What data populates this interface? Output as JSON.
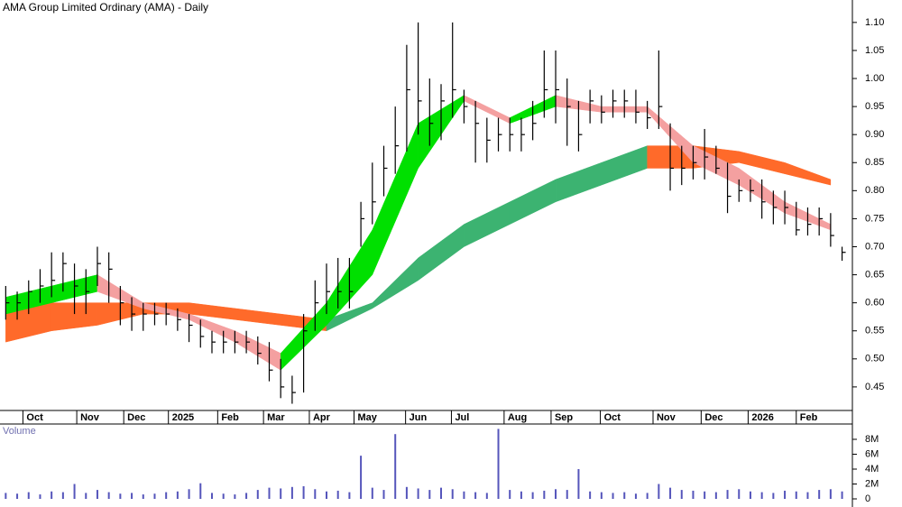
{
  "chart_data": [
    {
      "type": "ohlc",
      "title": "AMA Group Limited Ordinary (AMA) - Daily",
      "x": [
        0,
        1,
        2,
        3,
        4,
        5,
        6,
        7,
        8,
        9,
        10,
        11,
        12,
        13,
        14,
        15,
        16,
        17,
        18,
        19,
        20,
        21,
        22,
        23,
        24,
        25,
        26,
        27,
        28,
        29,
        30,
        31,
        32,
        33,
        34,
        35,
        36,
        37,
        38,
        39,
        40,
        41,
        42,
        43,
        44,
        45,
        46,
        47,
        48,
        49,
        50,
        51,
        52,
        53,
        54,
        55,
        56,
        57,
        58,
        59,
        60,
        61,
        62,
        63,
        64,
        65,
        66,
        67,
        68,
        69,
        70,
        71,
        72,
        73
      ],
      "high": [
        0.63,
        0.62,
        0.64,
        0.66,
        0.69,
        0.69,
        0.67,
        0.66,
        0.7,
        0.69,
        0.63,
        0.61,
        0.6,
        0.6,
        0.6,
        0.59,
        0.58,
        0.57,
        0.55,
        0.55,
        0.55,
        0.55,
        0.54,
        0.53,
        0.5,
        0.47,
        0.58,
        0.64,
        0.67,
        0.68,
        0.68,
        0.78,
        0.85,
        0.88,
        0.95,
        1.06,
        1.1,
        1.0,
        0.99,
        1.1,
        0.98,
        0.96,
        0.93,
        0.93,
        0.93,
        0.93,
        0.96,
        1.05,
        1.05,
        1.0,
        0.96,
        0.98,
        0.97,
        0.98,
        0.98,
        0.98,
        0.96,
        1.05,
        0.92,
        0.88,
        0.88,
        0.91,
        0.88,
        0.85,
        0.82,
        0.82,
        0.82,
        0.8,
        0.8,
        0.78,
        0.77,
        0.77,
        0.76,
        0.7
      ],
      "low": [
        0.57,
        0.57,
        0.58,
        0.6,
        0.61,
        0.62,
        0.58,
        0.58,
        0.63,
        0.6,
        0.56,
        0.55,
        0.55,
        0.56,
        0.56,
        0.55,
        0.53,
        0.52,
        0.51,
        0.51,
        0.51,
        0.51,
        0.49,
        0.46,
        0.43,
        0.42,
        0.44,
        0.55,
        0.58,
        0.59,
        0.59,
        0.7,
        0.74,
        0.79,
        0.83,
        0.87,
        0.9,
        0.88,
        0.89,
        0.93,
        0.92,
        0.85,
        0.85,
        0.87,
        0.87,
        0.87,
        0.89,
        0.93,
        0.92,
        0.88,
        0.87,
        0.92,
        0.92,
        0.93,
        0.93,
        0.92,
        0.91,
        0.91,
        0.8,
        0.81,
        0.82,
        0.82,
        0.83,
        0.76,
        0.78,
        0.78,
        0.75,
        0.74,
        0.74,
        0.72,
        0.72,
        0.72,
        0.7,
        0.675
      ],
      "close": [
        0.6,
        0.6,
        0.62,
        0.63,
        0.64,
        0.67,
        0.63,
        0.62,
        0.67,
        0.66,
        0.6,
        0.58,
        0.58,
        0.58,
        0.58,
        0.57,
        0.56,
        0.54,
        0.53,
        0.53,
        0.53,
        0.53,
        0.51,
        0.48,
        0.45,
        0.44,
        0.55,
        0.6,
        0.62,
        0.62,
        0.62,
        0.75,
        0.78,
        0.84,
        0.88,
        0.98,
        0.96,
        0.92,
        0.96,
        0.98,
        0.95,
        0.92,
        0.89,
        0.9,
        0.9,
        0.9,
        0.92,
        0.98,
        0.98,
        0.95,
        0.9,
        0.96,
        0.94,
        0.96,
        0.96,
        0.94,
        0.93,
        0.95,
        0.84,
        0.84,
        0.85,
        0.86,
        0.84,
        0.79,
        0.8,
        0.8,
        0.78,
        0.77,
        0.77,
        0.73,
        0.74,
        0.75,
        0.72,
        0.69
      ],
      "color": "#000000",
      "bands": [
        {
          "x": [
            0,
            4,
            8,
            12,
            16,
            20,
            24,
            28,
            32,
            36,
            40,
            44,
            48,
            52,
            56,
            60,
            64,
            68,
            72
          ],
          "upper": [
            0.6,
            0.6,
            0.6,
            0.6,
            0.6,
            0.59,
            0.58,
            0.57,
            0.6,
            0.68,
            0.74,
            0.78,
            0.82,
            0.85,
            0.88,
            0.88,
            0.87,
            0.85,
            0.82
          ],
          "lower": [
            0.53,
            0.55,
            0.56,
            0.58,
            0.58,
            0.57,
            0.56,
            0.55,
            0.59,
            0.64,
            0.7,
            0.74,
            0.78,
            0.81,
            0.84,
            0.84,
            0.85,
            0.83,
            0.81
          ],
          "colors": [
            "#ff6a2a",
            "#ff6a2a",
            "#ff6a2a",
            "#ff6a2a",
            "#ff6a2a",
            "#ff6a2a",
            "#ff6a2a",
            "#3cb371",
            "#3cb371",
            "#3cb371",
            "#3cb371",
            "#3cb371",
            "#3cb371",
            "#3cb371",
            "#ff6a2a",
            "#ff6a2a",
            "#ff6a2a",
            "#ff6a2a"
          ]
        },
        {
          "x": [
            0,
            4,
            8,
            12,
            16,
            20,
            24,
            28,
            32,
            36,
            40,
            44,
            48,
            52,
            56,
            60,
            64,
            68,
            72
          ],
          "upper": [
            0.61,
            0.63,
            0.65,
            0.6,
            0.58,
            0.55,
            0.51,
            0.6,
            0.73,
            0.92,
            0.97,
            0.93,
            0.97,
            0.95,
            0.95,
            0.88,
            0.84,
            0.78,
            0.74
          ],
          "lower": [
            0.58,
            0.6,
            0.62,
            0.59,
            0.57,
            0.53,
            0.48,
            0.56,
            0.65,
            0.84,
            0.96,
            0.92,
            0.95,
            0.94,
            0.94,
            0.85,
            0.81,
            0.76,
            0.73
          ],
          "colors": [
            "#00e000",
            "#00e000",
            "#f4a0a0",
            "#f4a0a0",
            "#f4a0a0",
            "#f4a0a0",
            "#00e000",
            "#00e000",
            "#00e000",
            "#00e000",
            "#f4a0a0",
            "#00e000",
            "#f4a0a0",
            "#f4a0a0",
            "#f4a0a0",
            "#f4a0a0",
            "#f4a0a0",
            "#f4a0a0"
          ]
        }
      ],
      "xlim": [
        -0.5,
        73.9
      ],
      "xticks": [
        {
          "value": 1.5,
          "label": "Oct"
        },
        {
          "value": 6.2,
          "label": "Nov"
        },
        {
          "value": 10.3,
          "label": "Dec"
        },
        {
          "value": 14.2,
          "label": "2025"
        },
        {
          "value": 18.5,
          "label": "Feb"
        },
        {
          "value": 22.5,
          "label": "Mar"
        },
        {
          "value": 26.5,
          "label": "Apr"
        },
        {
          "value": 30.4,
          "label": "May"
        },
        {
          "value": 34.9,
          "label": "Jun"
        },
        {
          "value": 38.9,
          "label": "Jul"
        },
        {
          "value": 43.5,
          "label": "Aug"
        },
        {
          "value": 47.6,
          "label": "Sep"
        },
        {
          "value": 51.9,
          "label": "Oct"
        },
        {
          "value": 56.5,
          "label": "Nov"
        },
        {
          "value": 60.7,
          "label": "Dec"
        },
        {
          "value": 64.8,
          "label": "2026"
        },
        {
          "value": 69.0,
          "label": "Feb"
        }
      ],
      "ylim": [
        0.408,
        1.14
      ],
      "yticks": [
        0.45,
        {
          "value": 0.5,
          "label": "0.50"
        },
        0.55,
        {
          "value": 0.6,
          "label": "0.60"
        },
        0.65,
        {
          "value": 0.7,
          "label": "0.70"
        },
        0.75,
        {
          "value": 0.8,
          "label": "0.80"
        },
        0.85,
        {
          "value": 0.9,
          "label": "0.90"
        },
        0.95,
        {
          "value": 1,
          "label": "1.00"
        },
        1.05,
        {
          "value": 1.1,
          "label": "1.10"
        }
      ]
    },
    {
      "type": "bar",
      "title": "Volume",
      "x": [
        0,
        1,
        2,
        3,
        4,
        5,
        6,
        7,
        8,
        9,
        10,
        11,
        12,
        13,
        14,
        15,
        16,
        17,
        18,
        19,
        20,
        21,
        22,
        23,
        24,
        25,
        26,
        27,
        28,
        29,
        30,
        31,
        32,
        33,
        34,
        35,
        36,
        37,
        38,
        39,
        40,
        41,
        42,
        43,
        44,
        45,
        46,
        47,
        48,
        49,
        50,
        51,
        52,
        53,
        54,
        55,
        56,
        57,
        58,
        59,
        60,
        61,
        62,
        63,
        64,
        65,
        66,
        67,
        68,
        69,
        70,
        71,
        72,
        73
      ],
      "values": [
        800000,
        700000,
        900000,
        600000,
        1000000,
        900000,
        2000000,
        800000,
        1200000,
        900000,
        700000,
        800000,
        600000,
        700000,
        900000,
        1000000,
        1300000,
        2100000,
        800000,
        700000,
        600000,
        800000,
        1200000,
        1500000,
        1400000,
        1600000,
        1700000,
        1300000,
        1000000,
        1100000,
        900000,
        5800000,
        1500000,
        1200000,
        8700000,
        1600000,
        1400000,
        1200000,
        1500000,
        1300000,
        1000000,
        900000,
        800000,
        9400000,
        1200000,
        1000000,
        900000,
        1100000,
        1300000,
        1200000,
        4000000,
        1000000,
        900000,
        800000,
        900000,
        700000,
        800000,
        2000000,
        1500000,
        1200000,
        1100000,
        1000000,
        900000,
        1200000,
        1300000,
        1000000,
        900000,
        800000,
        1100000,
        1000000,
        900000,
        1200000,
        1300000,
        1000000
      ],
      "color": "#5555bb",
      "xlim": [
        -0.5,
        73.9
      ],
      "ylim": [
        0,
        10300000
      ],
      "yticks": [
        0,
        {
          "value": 2000000,
          "label": "2M"
        },
        {
          "value": 4000000,
          "label": "4M"
        },
        {
          "value": 6000000,
          "label": "6M"
        },
        {
          "value": 8000000,
          "label": "8M"
        }
      ]
    }
  ]
}
